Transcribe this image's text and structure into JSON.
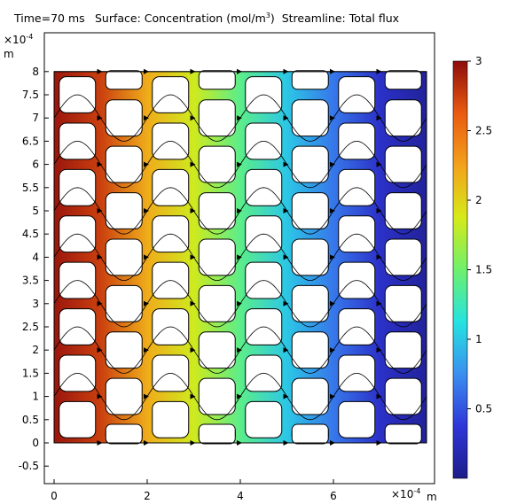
{
  "header": {
    "time": "Time=70 ms",
    "surface_prefix": "Surface: Concentration (mol/m",
    "surface_exp": "3",
    "surface_suffix": ")",
    "streamline": "Streamline: Total flux"
  },
  "chart_data": {
    "type": "heatmap",
    "title": "Surface: Concentration (mol/m3)  Streamline: Total flux",
    "x_axis": {
      "unit": "m",
      "multiplier": "×10",
      "multiplier_exp": "-4",
      "range": [
        -0.2,
        8.3
      ],
      "ticks": [
        0,
        2,
        4,
        6
      ],
      "tick_labels": [
        "0",
        "2",
        "4",
        "6"
      ]
    },
    "y_axis": {
      "unit": "m",
      "multiplier": "×10",
      "multiplier_exp": "-4",
      "range": [
        -0.85,
        8.55
      ],
      "ticks": [
        8,
        7.5,
        7,
        6.5,
        6,
        5.5,
        5,
        4.5,
        4,
        3.5,
        3,
        2.5,
        2,
        1.5,
        1,
        0.5,
        0,
        -0.5
      ],
      "tick_labels": [
        "8",
        "7.5",
        "7",
        "6.5",
        "6",
        "5.5",
        "5",
        "4.5",
        "4",
        "3.5",
        "3",
        "2.5",
        "2",
        "1.5",
        "1",
        "0.5",
        "0",
        "-0.5"
      ]
    },
    "domain": {
      "x": [
        0,
        8
      ],
      "y": [
        0,
        8
      ],
      "columns": 8,
      "pillars_per_column": 8,
      "pillar_size": 0.78,
      "inlet_edge": "left",
      "outlet_edge": "right"
    },
    "colorbar": {
      "min": 0,
      "max": 3,
      "ticks": [
        3,
        2.5,
        2,
        1.5,
        1,
        0.5
      ],
      "tick_labels": [
        "3",
        "2.5",
        "2",
        "1.5",
        "1",
        "0.5"
      ],
      "colormap": "rainbow",
      "colors": [
        "#1d1d8a",
        "#2f36d8",
        "#3a8ff0",
        "#25e3e0",
        "#6ef06c",
        "#d6ea18",
        "#f3a21b",
        "#ea5a10",
        "#8e0c0c"
      ]
    },
    "concentration_profile": {
      "x": [
        0,
        1,
        2,
        3,
        4,
        5,
        6,
        7,
        8
      ],
      "values": [
        2.95,
        2.75,
        2.2,
        1.85,
        1.4,
        1.0,
        0.65,
        0.3,
        0.08
      ]
    }
  }
}
